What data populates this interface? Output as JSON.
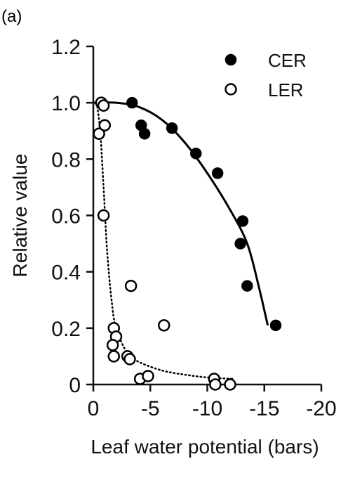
{
  "panel_label": "(a)",
  "chart_data": {
    "type": "scatter",
    "title": "",
    "xlabel": "Leaf water potential (bars)",
    "ylabel": "Relative value",
    "xlim": [
      0,
      -20
    ],
    "ylim": [
      0,
      1.2
    ],
    "xticks": [
      {
        "value": 0,
        "label": "0"
      },
      {
        "value": -5,
        "label": "-5"
      },
      {
        "value": -10,
        "label": "-10"
      },
      {
        "value": -15,
        "label": "-15"
      },
      {
        "value": -20,
        "label": "-20"
      }
    ],
    "yticks": [
      {
        "value": 0,
        "label": "0"
      },
      {
        "value": 0.2,
        "label": "0.2"
      },
      {
        "value": 0.4,
        "label": "0.4"
      },
      {
        "value": 0.6,
        "label": "0.6"
      },
      {
        "value": 0.8,
        "label": "0.8"
      },
      {
        "value": 1.0,
        "label": "1.0"
      },
      {
        "value": 1.2,
        "label": "1.2"
      }
    ],
    "grid": false,
    "legend_position": "top-right",
    "series": [
      {
        "name": "CER",
        "marker": "filled-circle",
        "color": "#000000",
        "points": [
          {
            "x": -3.4,
            "y": 1.0
          },
          {
            "x": -4.2,
            "y": 0.92
          },
          {
            "x": -4.5,
            "y": 0.89
          },
          {
            "x": -6.9,
            "y": 0.91
          },
          {
            "x": -9.0,
            "y": 0.82
          },
          {
            "x": -10.9,
            "y": 0.75
          },
          {
            "x": -12.9,
            "y": 0.5
          },
          {
            "x": -13.1,
            "y": 0.58
          },
          {
            "x": -13.5,
            "y": 0.35
          },
          {
            "x": -16.0,
            "y": 0.21
          }
        ],
        "fit": {
          "style": "solid",
          "points": [
            {
              "x": 0,
              "y": 1.0
            },
            {
              "x": -2,
              "y": 1.0
            },
            {
              "x": -4,
              "y": 0.985
            },
            {
              "x": -6,
              "y": 0.94
            },
            {
              "x": -8,
              "y": 0.86
            },
            {
              "x": -10,
              "y": 0.75
            },
            {
              "x": -12,
              "y": 0.62
            },
            {
              "x": -13.5,
              "y": 0.5
            },
            {
              "x": -14.5,
              "y": 0.35
            },
            {
              "x": -15.3,
              "y": 0.21
            }
          ]
        }
      },
      {
        "name": "LER",
        "marker": "open-circle",
        "color": "#000000",
        "points": [
          {
            "x": -0.5,
            "y": 0.89
          },
          {
            "x": -0.7,
            "y": 1.0
          },
          {
            "x": -0.9,
            "y": 0.99
          },
          {
            "x": -1.0,
            "y": 0.92
          },
          {
            "x": -0.9,
            "y": 0.6
          },
          {
            "x": -1.8,
            "y": 0.2
          },
          {
            "x": -2.0,
            "y": 0.17
          },
          {
            "x": -1.7,
            "y": 0.14
          },
          {
            "x": -1.8,
            "y": 0.1
          },
          {
            "x": -3.0,
            "y": 0.1
          },
          {
            "x": -3.2,
            "y": 0.09
          },
          {
            "x": -3.3,
            "y": 0.35
          },
          {
            "x": -4.1,
            "y": 0.02
          },
          {
            "x": -4.8,
            "y": 0.03
          },
          {
            "x": -6.2,
            "y": 0.21
          },
          {
            "x": -10.6,
            "y": 0.02
          },
          {
            "x": -10.7,
            "y": 0.0
          },
          {
            "x": -12.0,
            "y": 0.0
          }
        ],
        "fit": {
          "style": "dotted",
          "points": [
            {
              "x": -0.3,
              "y": 1.0
            },
            {
              "x": -0.6,
              "y": 0.9
            },
            {
              "x": -0.9,
              "y": 0.7
            },
            {
              "x": -1.2,
              "y": 0.48
            },
            {
              "x": -1.6,
              "y": 0.3
            },
            {
              "x": -2.0,
              "y": 0.2
            },
            {
              "x": -3.0,
              "y": 0.11
            },
            {
              "x": -4.0,
              "y": 0.08
            },
            {
              "x": -6.0,
              "y": 0.05
            },
            {
              "x": -8.0,
              "y": 0.035
            },
            {
              "x": -10.0,
              "y": 0.025
            },
            {
              "x": -12.3,
              "y": 0.02
            }
          ]
        }
      }
    ]
  }
}
